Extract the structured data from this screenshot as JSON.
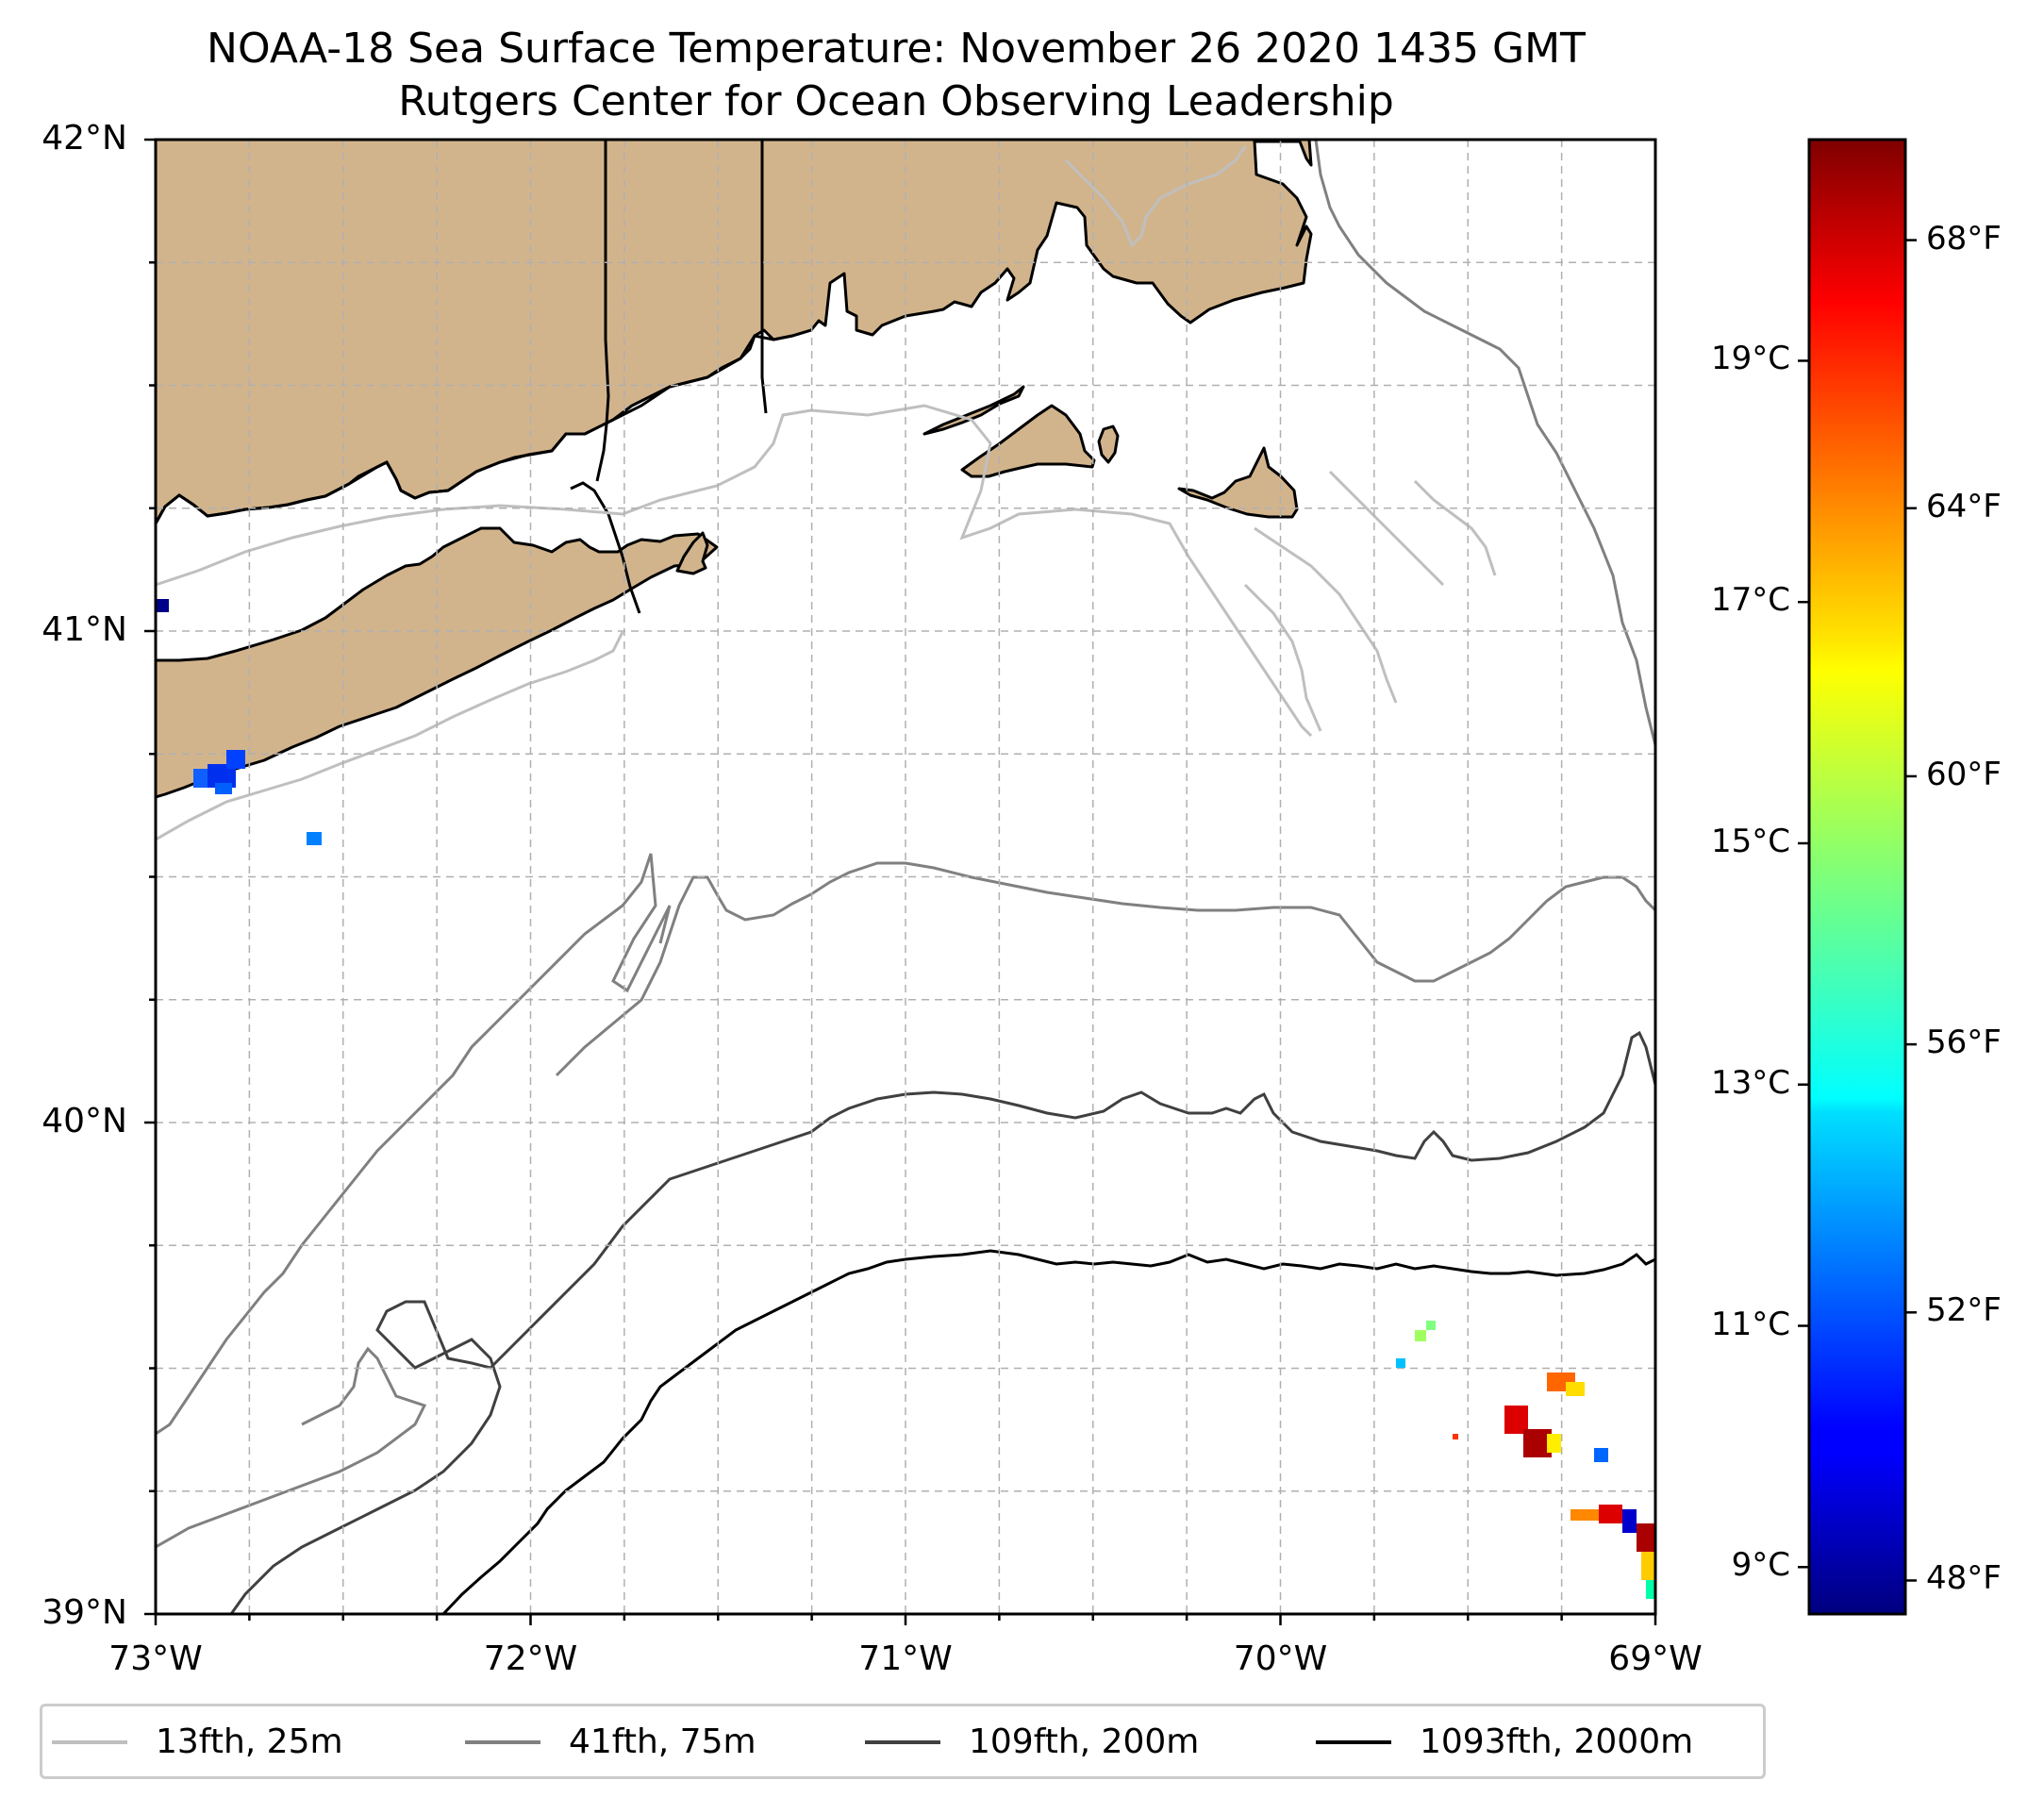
{
  "title": {
    "line1": "NOAA-18 Sea Surface Temperature: November 26 2020 1435 GMT",
    "line2": "Rutgers Center for Ocean Observing Leadership"
  },
  "map": {
    "lon_range": [
      -73,
      -69
    ],
    "lat_range": [
      39,
      42
    ],
    "lat_ticks": [
      {
        "value": 42,
        "label": "42°N"
      },
      {
        "value": 41,
        "label": "41°N"
      },
      {
        "value": 40,
        "label": "40°N"
      },
      {
        "value": 39,
        "label": "39°N"
      }
    ],
    "lon_ticks": [
      {
        "value": -73,
        "label": "73°W"
      },
      {
        "value": -72,
        "label": "72°W"
      },
      {
        "value": -71,
        "label": "71°W"
      },
      {
        "value": -70,
        "label": "70°W"
      },
      {
        "value": -69,
        "label": "69°W"
      }
    ],
    "land_color": "#d2b48c",
    "grid_style": "dashed"
  },
  "colorbar": {
    "colormap": "jet",
    "celsius_ticks": [
      {
        "value": 19,
        "label": "19°C"
      },
      {
        "value": 17,
        "label": "17°C"
      },
      {
        "value": 15,
        "label": "15°C"
      },
      {
        "value": 13,
        "label": "13°C"
      },
      {
        "value": 11,
        "label": "11°C"
      },
      {
        "value": 9,
        "label": "9°C"
      }
    ],
    "fahrenheit_ticks": [
      {
        "value": 68,
        "label": "68°F"
      },
      {
        "value": 64,
        "label": "64°F"
      },
      {
        "value": 60,
        "label": "60°F"
      },
      {
        "value": 56,
        "label": "56°F"
      },
      {
        "value": 52,
        "label": "52°F"
      },
      {
        "value": 48,
        "label": "48°F"
      }
    ],
    "range_f": [
      47.5,
      69.5
    ]
  },
  "legend": {
    "items": [
      {
        "label": "13fth, 25m",
        "color": "#bfbfbf"
      },
      {
        "label": "41fth, 75m",
        "color": "#808080"
      },
      {
        "label": "109fth, 200m",
        "color": "#404040"
      },
      {
        "label": "1093fth, 2000m",
        "color": "#000000"
      }
    ]
  }
}
